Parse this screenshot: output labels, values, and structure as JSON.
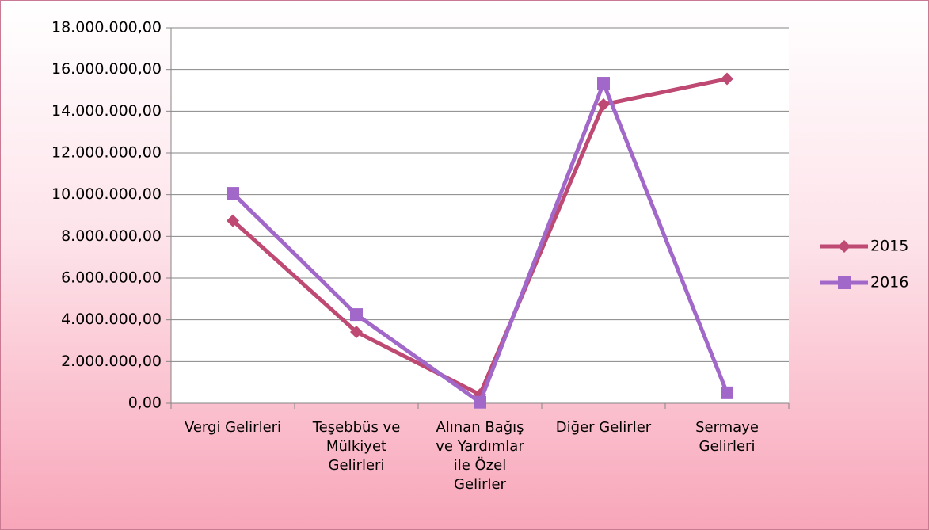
{
  "chart_data": {
    "type": "line",
    "categories": [
      "Vergi Gelirleri",
      "Teşebbüs ve Mülkiyet Gelirleri",
      "Alınan Bağış ve Yardımlar ile Özel Gelirler",
      "Diğer Gelirler",
      "Sermaye Gelirleri"
    ],
    "series": [
      {
        "name": "2015",
        "color": "#be4a73",
        "marker": "diamond",
        "values": [
          8750000,
          3420000,
          420000,
          14320000,
          15550000
        ]
      },
      {
        "name": "2016",
        "color": "#a167c9",
        "marker": "square",
        "values": [
          10060000,
          4250000,
          50000,
          15340000,
          500000
        ]
      }
    ],
    "ylim": [
      0,
      18000000
    ],
    "yticks": [
      {
        "value": 0,
        "label": "0,00"
      },
      {
        "value": 2000000,
        "label": "2.000.000,00"
      },
      {
        "value": 4000000,
        "label": "4.000.000,00"
      },
      {
        "value": 6000000,
        "label": "6.000.000,00"
      },
      {
        "value": 8000000,
        "label": "8.000.000,00"
      },
      {
        "value": 10000000,
        "label": "10.000.000,00"
      },
      {
        "value": 12000000,
        "label": "12.000.000,00"
      },
      {
        "value": 14000000,
        "label": "14.000.000,00"
      },
      {
        "value": 16000000,
        "label": "16.000.000,00"
      },
      {
        "value": 18000000,
        "label": "18.000.000,00"
      }
    ],
    "grid": true,
    "legend": "right"
  }
}
